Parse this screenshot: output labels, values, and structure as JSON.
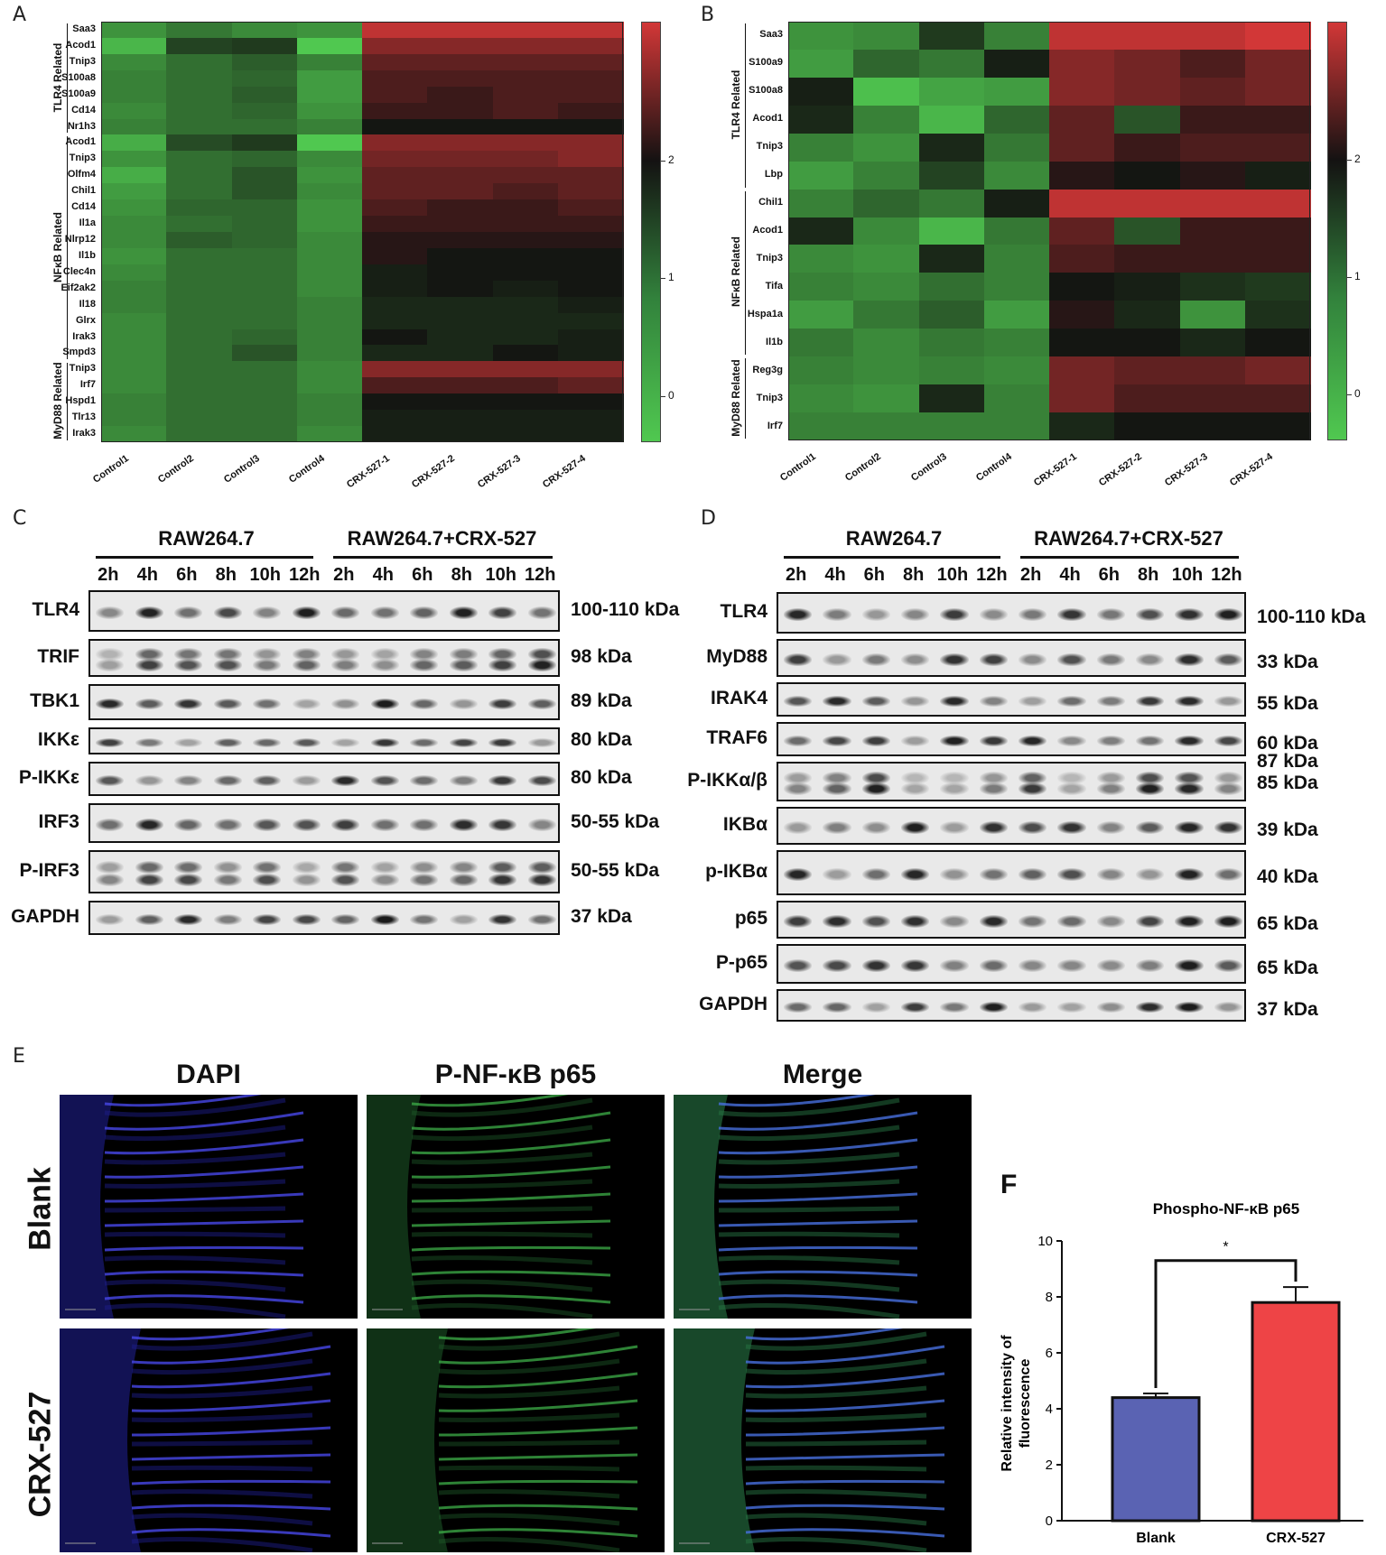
{
  "panels": {
    "A": "A",
    "B": "B",
    "C": "C",
    "D": "D",
    "E": "E",
    "F": "F"
  },
  "heatmap_A": {
    "genes": [
      "Saa3",
      "Acod1",
      "Tnip3",
      "S100a8",
      "S100a9",
      "Cd14",
      "Nr1h3",
      "Acod1",
      "Tnip3",
      "Olfm4",
      "Chil1",
      "Cd14",
      "Il1a",
      "Nlrp12",
      "Il1b",
      "Clec4n",
      "Eif2ak2",
      "Il18",
      "Glrx",
      "Irak3",
      "Smpd3",
      "Tnip3",
      "Irf7",
      "Hspd1",
      "Tlr13",
      "Irak3"
    ],
    "columns": [
      "Control1",
      "Control2",
      "Control3",
      "Control4",
      "CRX-527-1",
      "CRX-527-2",
      "CRX-527-3",
      "CRX-527-4"
    ],
    "groups": [
      {
        "label": "TLR4 Related",
        "start": 0,
        "end": 6
      },
      {
        "label": "NFκB Related",
        "start": 7,
        "end": 20
      },
      {
        "label": "MyD88 Related",
        "start": 21,
        "end": 25
      }
    ],
    "scale_ticks": [
      "2",
      "1",
      "0"
    ],
    "values": [
      [
        0.6,
        0.9,
        0.7,
        0.6,
        2.9,
        2.9,
        2.9,
        2.9
      ],
      [
        0.2,
        1.5,
        1.6,
        0.0,
        2.6,
        2.6,
        2.6,
        2.6
      ],
      [
        0.7,
        1.0,
        1.2,
        0.8,
        2.4,
        2.4,
        2.4,
        2.4
      ],
      [
        0.8,
        1.0,
        1.1,
        0.5,
        2.3,
        2.3,
        2.3,
        2.3
      ],
      [
        0.8,
        1.0,
        1.2,
        0.5,
        2.3,
        2.2,
        2.3,
        2.3
      ],
      [
        0.7,
        1.0,
        1.1,
        0.6,
        2.2,
        2.2,
        2.3,
        2.2
      ],
      [
        0.8,
        1.0,
        1.0,
        0.8,
        2.0,
        2.0,
        2.0,
        2.0
      ],
      [
        0.3,
        1.4,
        1.6,
        0.0,
        2.6,
        2.6,
        2.6,
        2.6
      ],
      [
        0.6,
        1.0,
        1.1,
        0.7,
        2.5,
        2.5,
        2.5,
        2.6
      ],
      [
        0.3,
        1.0,
        1.3,
        0.6,
        2.4,
        2.4,
        2.4,
        2.4
      ],
      [
        0.5,
        1.0,
        1.3,
        0.7,
        2.4,
        2.4,
        2.3,
        2.4
      ],
      [
        0.6,
        1.1,
        1.1,
        0.6,
        2.3,
        2.2,
        2.2,
        2.3
      ],
      [
        0.7,
        1.0,
        1.1,
        0.6,
        2.2,
        2.2,
        2.2,
        2.2
      ],
      [
        0.7,
        1.2,
        1.1,
        0.7,
        2.1,
        2.1,
        2.1,
        2.1
      ],
      [
        0.6,
        1.0,
        1.0,
        0.7,
        2.1,
        2.0,
        2.0,
        2.0
      ],
      [
        0.7,
        1.0,
        1.0,
        0.7,
        1.9,
        2.0,
        2.0,
        2.0
      ],
      [
        0.8,
        1.0,
        1.0,
        0.7,
        1.9,
        2.0,
        1.9,
        2.0
      ],
      [
        0.8,
        1.0,
        1.0,
        0.8,
        1.8,
        1.8,
        1.8,
        1.9
      ],
      [
        0.7,
        1.0,
        1.0,
        0.8,
        1.8,
        1.8,
        1.8,
        1.8
      ],
      [
        0.7,
        1.0,
        1.1,
        0.8,
        2.0,
        1.8,
        1.8,
        1.9
      ],
      [
        0.7,
        1.0,
        1.3,
        0.8,
        1.8,
        1.8,
        2.0,
        1.9
      ],
      [
        0.7,
        1.0,
        1.0,
        0.7,
        2.6,
        2.6,
        2.6,
        2.6
      ],
      [
        0.7,
        1.0,
        1.0,
        0.7,
        2.3,
        2.3,
        2.3,
        2.4
      ],
      [
        0.8,
        1.0,
        1.0,
        0.8,
        2.0,
        2.0,
        2.0,
        2.0
      ],
      [
        0.8,
        1.0,
        1.0,
        0.8,
        1.9,
        1.9,
        1.9,
        1.9
      ],
      [
        0.7,
        1.0,
        1.0,
        0.7,
        1.9,
        1.9,
        1.9,
        1.9
      ]
    ]
  },
  "heatmap_B": {
    "genes": [
      "Saa3",
      "S100a9",
      "S100a8",
      "Acod1",
      "Tnip3",
      "Lbp",
      "Chil1",
      "Acod1",
      "Tnip3",
      "Tifa",
      "Hspa1a",
      "Il1b",
      "Reg3g",
      "Tnip3",
      "Irf7"
    ],
    "columns": [
      "Control1",
      "Control2",
      "Control3",
      "Control4",
      "CRX-527-1",
      "CRX-527-2",
      "CRX-527-3",
      "CRX-527-4"
    ],
    "groups": [
      {
        "label": "TLR4 Related",
        "start": 0,
        "end": 5
      },
      {
        "label": "NFκB Related",
        "start": 6,
        "end": 11
      },
      {
        "label": "MyD88 Related",
        "start": 12,
        "end": 14
      }
    ],
    "scale_ticks": [
      "2",
      "1",
      "0"
    ],
    "values": [
      [
        0.6,
        0.7,
        1.6,
        0.8,
        2.9,
        2.9,
        2.9,
        3.0
      ],
      [
        0.5,
        1.1,
        0.9,
        1.9,
        2.6,
        2.5,
        2.3,
        2.5
      ],
      [
        1.9,
        0.1,
        0.4,
        0.5,
        2.6,
        2.5,
        2.4,
        2.5
      ],
      [
        1.8,
        0.8,
        0.2,
        1.1,
        2.4,
        1.3,
        2.2,
        2.2
      ],
      [
        0.8,
        0.6,
        1.8,
        0.9,
        2.4,
        2.2,
        2.3,
        2.3
      ],
      [
        0.5,
        0.8,
        1.5,
        0.7,
        2.1,
        2.0,
        2.1,
        1.9
      ],
      [
        0.8,
        1.1,
        0.9,
        1.9,
        2.9,
        2.9,
        2.9,
        2.9
      ],
      [
        1.8,
        0.7,
        0.2,
        0.9,
        2.4,
        1.3,
        2.2,
        2.2
      ],
      [
        0.7,
        0.6,
        1.8,
        0.8,
        2.3,
        2.2,
        2.2,
        2.2
      ],
      [
        0.8,
        0.7,
        1.0,
        0.8,
        2.0,
        1.9,
        1.7,
        1.6
      ],
      [
        0.5,
        0.9,
        1.2,
        0.5,
        2.1,
        1.8,
        0.6,
        1.7
      ],
      [
        0.9,
        0.7,
        0.9,
        0.8,
        2.0,
        2.0,
        1.8,
        2.0
      ],
      [
        0.8,
        0.7,
        0.8,
        0.7,
        2.5,
        2.4,
        2.4,
        2.5
      ],
      [
        0.7,
        0.6,
        1.8,
        0.8,
        2.5,
        2.3,
        2.3,
        2.3
      ],
      [
        0.8,
        0.8,
        0.8,
        0.8,
        1.8,
        2.0,
        2.0,
        2.0
      ]
    ]
  },
  "blot_C": {
    "header_left": "RAW264.7",
    "header_right": "RAW264.7+CRX-527",
    "times": [
      "2h",
      "4h",
      "6h",
      "8h",
      "10h",
      "12h",
      "2h",
      "4h",
      "6h",
      "8h",
      "10h",
      "12h"
    ],
    "rows": [
      {
        "label": "TLR4",
        "kda": "100-110 kDa"
      },
      {
        "label": "TRIF",
        "kda": "98 kDa"
      },
      {
        "label": "TBK1",
        "kda": "89 kDa"
      },
      {
        "label": "IKKε",
        "kda": "80 kDa"
      },
      {
        "label": "P-IKKε",
        "kda": "80 kDa"
      },
      {
        "label": "IRF3",
        "kda": "50-55 kDa"
      },
      {
        "label": "P-IRF3",
        "kda": "50-55 kDa"
      },
      {
        "label": "GAPDH",
        "kda": "37 kDa"
      }
    ]
  },
  "blot_D": {
    "header_left": "RAW264.7",
    "header_right": "RAW264.7+CRX-527",
    "times": [
      "2h",
      "4h",
      "6h",
      "8h",
      "10h",
      "12h",
      "2h",
      "4h",
      "6h",
      "8h",
      "10h",
      "12h"
    ],
    "rows": [
      {
        "label": "TLR4",
        "kda": "100-110 kDa"
      },
      {
        "label": "MyD88",
        "kda": "33 kDa"
      },
      {
        "label": "IRAK4",
        "kda": "55 kDa"
      },
      {
        "label": "TRAF6",
        "kda": "60 kDa"
      },
      {
        "label": "P-IKKα/β",
        "kda": "87 kDa",
        "kda2": "85 kDa"
      },
      {
        "label": "IKBα",
        "kda": "39 kDa"
      },
      {
        "label": "p-IKBα",
        "kda": "40 kDa"
      },
      {
        "label": "p65",
        "kda": "65 kDa"
      },
      {
        "label": "P-p65",
        "kda": "65 kDa"
      },
      {
        "label": "GAPDH",
        "kda": "37 kDa"
      }
    ]
  },
  "if_panel": {
    "columns": [
      "DAPI",
      "P-NF-κB p65",
      "Merge"
    ],
    "rows": [
      "Blank",
      "CRX-527"
    ]
  },
  "chart_data": {
    "type": "bar",
    "title": "Phospho-NF-κB p65",
    "categories": [
      "Blank",
      "CRX-527"
    ],
    "values": [
      4.4,
      7.8
    ],
    "errors": [
      0.15,
      0.55
    ],
    "colors": [
      "#5a63b3",
      "#ee4446"
    ],
    "ylabel": "Relative intensity of fluorescence",
    "xlabel": "",
    "ylim": [
      0,
      10
    ],
    "yticks": [
      "0",
      "2",
      "4",
      "6",
      "8",
      "10"
    ],
    "significance": "*"
  }
}
